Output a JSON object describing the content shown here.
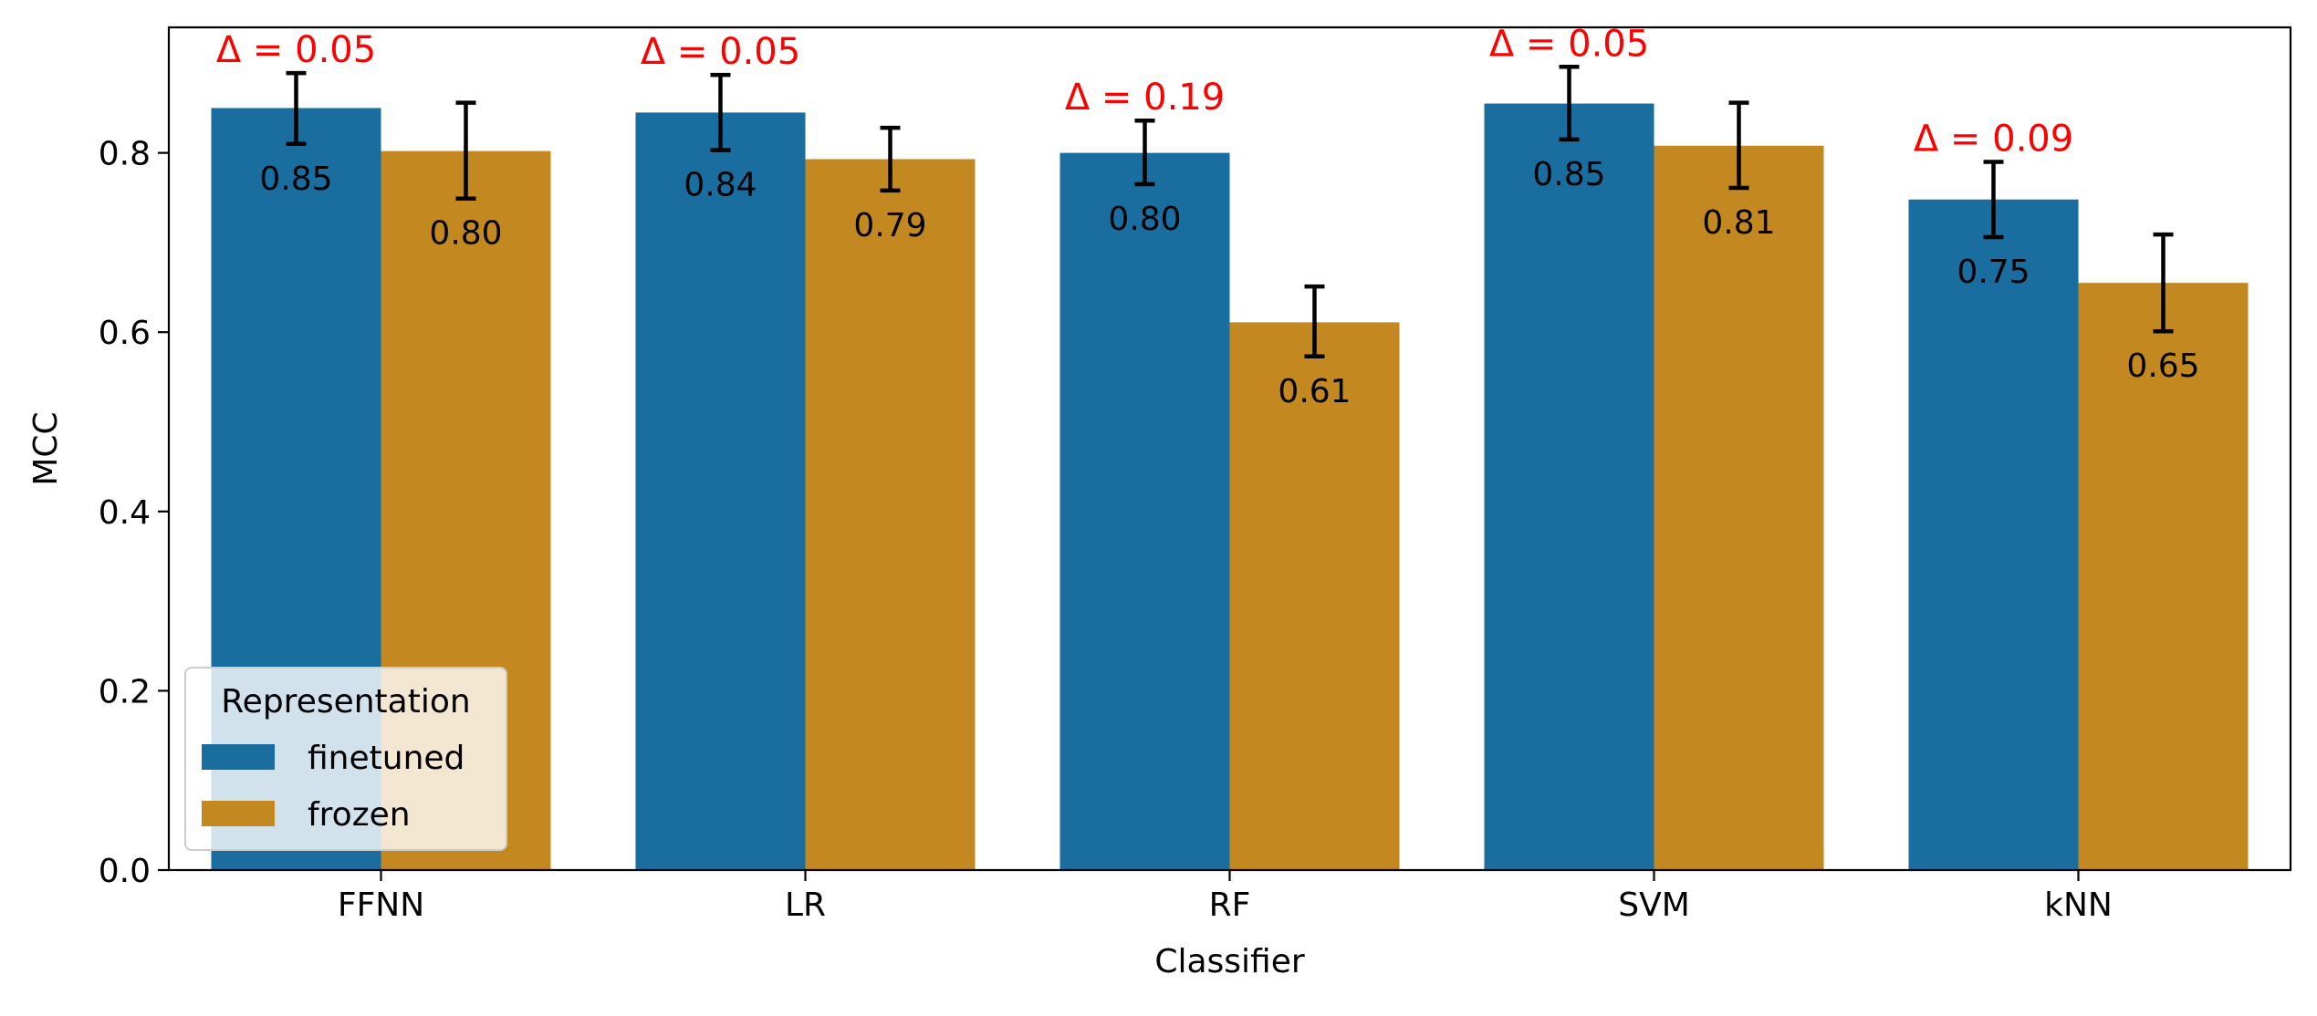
{
  "chart_data": {
    "type": "bar",
    "xlabel": "Classifier",
    "ylabel": "MCC",
    "ylim": [
      0.0,
      0.94
    ],
    "yticks": [
      "0.0",
      "0.2",
      "0.4",
      "0.6",
      "0.8"
    ],
    "categories": [
      "FFNN",
      "LR",
      "RF",
      "SVM",
      "kNN"
    ],
    "legend": {
      "title": "Representation",
      "placement": "lower-left"
    },
    "series": [
      {
        "name": "finetuned",
        "color": "#1a6e9f",
        "values": [
          0.85,
          0.845,
          0.8,
          0.855,
          0.748
        ],
        "error_low": [
          0.81,
          0.803,
          0.765,
          0.815,
          0.706
        ],
        "error_high": [
          0.889,
          0.887,
          0.836,
          0.896,
          0.79
        ],
        "labels": [
          "0.85",
          "0.84",
          "0.80",
          "0.85",
          "0.75"
        ]
      },
      {
        "name": "frozen",
        "color": "#c38820",
        "values": [
          0.802,
          0.793,
          0.611,
          0.808,
          0.655
        ],
        "error_low": [
          0.749,
          0.758,
          0.573,
          0.761,
          0.601
        ],
        "error_high": [
          0.856,
          0.828,
          0.651,
          0.856,
          0.709
        ],
        "labels": [
          "0.80",
          "0.79",
          "0.61",
          "0.81",
          "0.65"
        ]
      }
    ],
    "annotations": {
      "color": "#ff0000",
      "labels": [
        "Δ = 0.05",
        "Δ = 0.05",
        "Δ = 0.19",
        "Δ = 0.05",
        "Δ = 0.09"
      ]
    }
  }
}
